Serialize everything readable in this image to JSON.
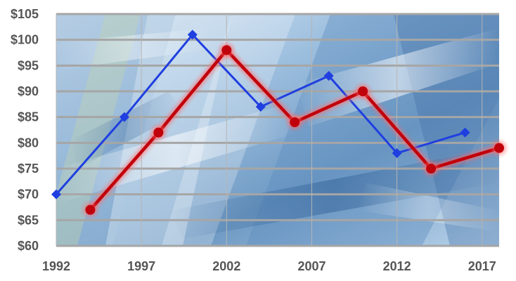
{
  "chart_data": {
    "type": "line",
    "title": "",
    "xlabel": "",
    "ylabel": "",
    "x_ticks": [
      "1992",
      "1997",
      "2002",
      "2007",
      "2012",
      "2017"
    ],
    "y_ticks": [
      "$60",
      "$65",
      "$70",
      "$75",
      "$80",
      "$85",
      "$90",
      "$95",
      "$100",
      "$105"
    ],
    "xlim": [
      1992,
      2018
    ],
    "ylim": [
      60,
      105
    ],
    "grid": "horizontal",
    "legend": "none",
    "background": "photographic abstract blue panel",
    "series": [
      {
        "color": "#1f3fe0",
        "marker": "diamond",
        "points": [
          {
            "x": 1992,
            "y": 70
          },
          {
            "x": 1996,
            "y": 85
          },
          {
            "x": 2000,
            "y": 101
          },
          {
            "x": 2004,
            "y": 87
          },
          {
            "x": 2008,
            "y": 93
          },
          {
            "x": 2012,
            "y": 78
          },
          {
            "x": 2016,
            "y": 82
          }
        ]
      },
      {
        "color": "#c0000b",
        "marker": "circle",
        "glow": true,
        "points": [
          {
            "x": 1994,
            "y": 67
          },
          {
            "x": 1998,
            "y": 82
          },
          {
            "x": 2002,
            "y": 98
          },
          {
            "x": 2006,
            "y": 84
          },
          {
            "x": 2010,
            "y": 90
          },
          {
            "x": 2014,
            "y": 75
          },
          {
            "x": 2018,
            "y": 79
          }
        ]
      }
    ]
  }
}
